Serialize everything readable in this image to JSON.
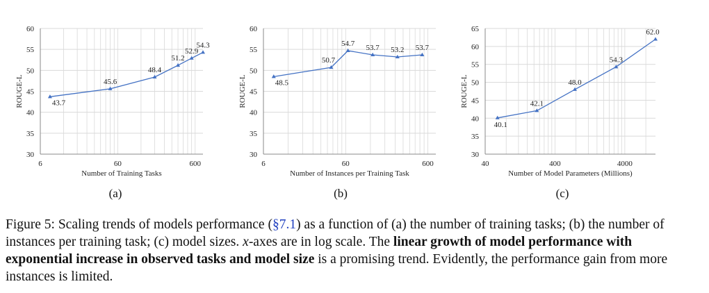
{
  "chart_data": [
    {
      "id": "a",
      "type": "line",
      "xlabel": "Number of Training Tasks",
      "ylabel": "ROUGE-L",
      "x_scale": "log",
      "xlim": [
        6,
        757
      ],
      "ylim": [
        30,
        60
      ],
      "x_ticks": [
        6,
        60,
        600
      ],
      "y_ticks": [
        30,
        35,
        40,
        45,
        50,
        55,
        60
      ],
      "x": [
        8,
        48,
        180,
        360,
        540,
        757
      ],
      "y": [
        43.7,
        45.6,
        48.4,
        51.2,
        52.9,
        54.3
      ],
      "labels": [
        "43.7",
        "45.6",
        "48.4",
        "51.2",
        "52.9",
        "54.3"
      ],
      "grid": true,
      "sublabel": "(a)"
    },
    {
      "id": "b",
      "type": "line",
      "xlabel": "Number of Instances per Training Task",
      "ylabel": "ROUGE-L",
      "x_scale": "log",
      "xlim": [
        6,
        750
      ],
      "ylim": [
        30,
        60
      ],
      "x_ticks": [
        6,
        60,
        600
      ],
      "y_ticks": [
        30,
        35,
        40,
        45,
        50,
        55,
        60
      ],
      "x": [
        8,
        40,
        64,
        128,
        256,
        512
      ],
      "y": [
        48.5,
        50.7,
        54.7,
        53.7,
        53.2,
        53.7
      ],
      "labels": [
        "48.5",
        "50.7",
        "54.7",
        "53.7",
        "53.2",
        "53.7"
      ],
      "grid": true,
      "sublabel": "(b)"
    },
    {
      "id": "c",
      "type": "line",
      "xlabel": "Number of Model Parameters (Millions)",
      "ylabel": "ROUGE-L",
      "x_scale": "log",
      "xlim": [
        40,
        11000
      ],
      "ylim": [
        30,
        65
      ],
      "x_ticks": [
        40,
        400,
        4000
      ],
      "y_ticks": [
        30,
        35,
        40,
        45,
        50,
        55,
        60,
        65
      ],
      "x": [
        60,
        220,
        770,
        3000,
        11000
      ],
      "y": [
        40.1,
        42.1,
        48.0,
        54.3,
        62.0
      ],
      "labels": [
        "40.1",
        "42.1",
        "48.0",
        "54.3",
        "62.0"
      ],
      "grid": true,
      "sublabel": "(c)"
    }
  ],
  "caption": {
    "prefix": "Figure 5: Scaling trends of models performance (",
    "ref": "§7.1",
    "mid": ") as a function of (a) the number of training tasks; (b) the number of instances per training task; (c) model sizes. ",
    "x_var": "x",
    "mid2": "-axes are in log scale. The ",
    "bold": "linear growth of model performance with exponential increase in observed tasks and model size",
    "suffix": " is a promising trend. Evidently, the performance gain from more instances is limited."
  },
  "colors": {
    "line": "#4472c4",
    "grid": "#d9d9d9",
    "axis": "#888888",
    "text": "#222222"
  }
}
